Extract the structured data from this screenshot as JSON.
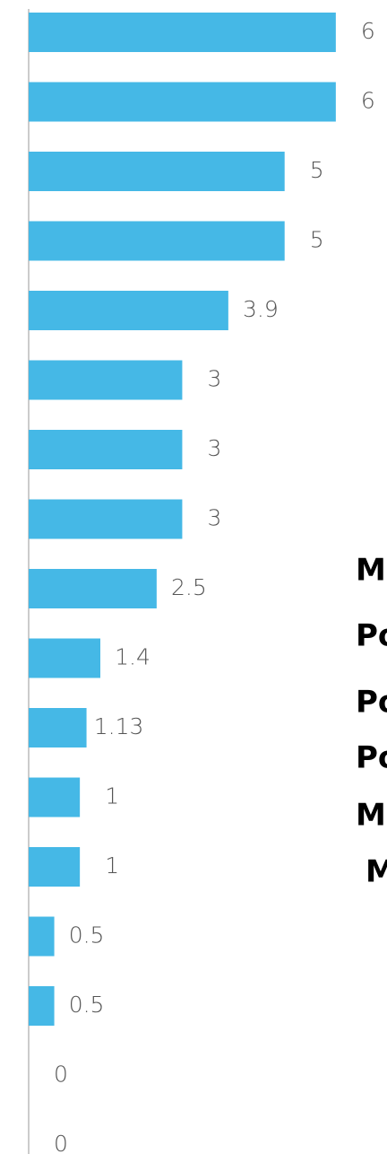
{
  "chart_data": {
    "type": "barh",
    "values": [
      6,
      6,
      5,
      5,
      3.9,
      3,
      3,
      3,
      2.5,
      1.4,
      1.13,
      1,
      1,
      0.5,
      0.5,
      0,
      0
    ],
    "color": "#45b8e6",
    "xlim": [
      0,
      7
    ]
  },
  "side_texts": [
    "M",
    "Po",
    "Po",
    "Po",
    "M",
    "M"
  ]
}
